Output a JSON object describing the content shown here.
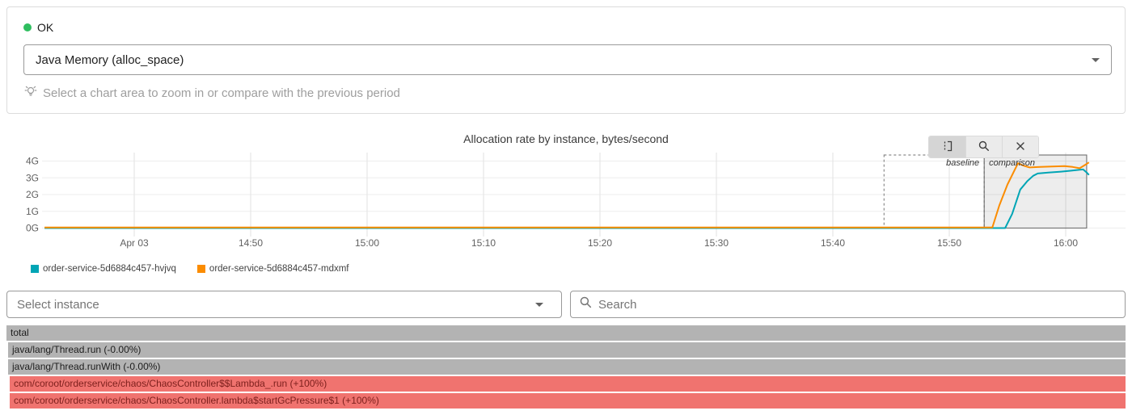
{
  "status": {
    "label": "OK",
    "color": "#2fbe5f"
  },
  "report_select": {
    "value": "Java Memory (alloc_space)"
  },
  "hint": {
    "text": "Select a chart area to zoom in or compare with the previous period"
  },
  "chart": {
    "title": "Allocation rate by instance, bytes/second",
    "toolbar": {
      "buttons": [
        {
          "icon": "select-compare-icon",
          "active": true
        },
        {
          "icon": "magnify-icon",
          "active": false
        },
        {
          "icon": "close-icon",
          "active": false
        }
      ],
      "baseline_label": "baseline",
      "comparison_label": "comparison"
    }
  },
  "chart_data": {
    "type": "line",
    "title": "Allocation rate by instance, bytes/second",
    "y_unit": "bytes/second (G = gigabytes)",
    "grid": true,
    "legend_position": "bottom-left",
    "ylim": [
      0,
      4.36
    ],
    "x_axis_note": "t = minutes since midnight, Apr 03",
    "x_range": [
      872.3,
      965.8
    ],
    "x_ticks": [
      {
        "label": "Apr 03",
        "t": 880
      },
      {
        "label": "14:50",
        "t": 890
      },
      {
        "label": "15:00",
        "t": 900
      },
      {
        "label": "15:10",
        "t": 910
      },
      {
        "label": "15:20",
        "t": 920
      },
      {
        "label": "15:30",
        "t": 930
      },
      {
        "label": "15:40",
        "t": 940
      },
      {
        "label": "15:50",
        "t": 950
      },
      {
        "label": "16:00",
        "t": 960
      }
    ],
    "y_ticks": [
      {
        "label": "0G",
        "value": 0
      },
      {
        "label": "1G",
        "value": 1
      },
      {
        "label": "2G",
        "value": 2
      },
      {
        "label": "3G",
        "value": 3
      },
      {
        "label": "4G",
        "value": 4
      }
    ],
    "regions": [
      {
        "name": "baseline",
        "t_start": 944.4,
        "t_end": 953,
        "style": "dashed"
      },
      {
        "name": "comparison",
        "t_start": 953,
        "t_end": 961.8,
        "style": "solid-filled"
      }
    ],
    "series": [
      {
        "name": "order-service-5d6884c457-hvjvq",
        "color": "#00a5b5",
        "points": [
          [
            872.3,
            0.0
          ],
          [
            954.8,
            0.0
          ],
          [
            955.4,
            0.85
          ],
          [
            956.1,
            2.3
          ],
          [
            956.7,
            2.8
          ],
          [
            957.2,
            3.12
          ],
          [
            957.6,
            3.26
          ],
          [
            958.5,
            3.31
          ],
          [
            959.6,
            3.37
          ],
          [
            960.4,
            3.42
          ],
          [
            961.2,
            3.48
          ],
          [
            961.5,
            3.5
          ],
          [
            961.8,
            3.32
          ],
          [
            962.0,
            3.17
          ]
        ]
      },
      {
        "name": "order-service-5d6884c457-mdxmf",
        "color": "#fb8c00",
        "points": [
          [
            872.3,
            0.04
          ],
          [
            953.7,
            0.04
          ],
          [
            954.3,
            1.35
          ],
          [
            955.0,
            2.6
          ],
          [
            955.9,
            3.87
          ],
          [
            956.4,
            3.72
          ],
          [
            956.9,
            3.62
          ],
          [
            957.8,
            3.65
          ],
          [
            958.8,
            3.67
          ],
          [
            959.9,
            3.7
          ],
          [
            960.6,
            3.65
          ],
          [
            961.2,
            3.57
          ],
          [
            961.6,
            3.74
          ],
          [
            962.0,
            3.92
          ]
        ]
      }
    ]
  },
  "controls": {
    "instance_select": {
      "placeholder": "Select instance"
    },
    "search": {
      "placeholder": "Search"
    }
  },
  "profile_table": {
    "colors": {
      "neutral_bg": "#b3b3b3",
      "neutral_text": "#1d1d1d",
      "bad_bg": "#f0736f",
      "bad_text": "#7c1f1c"
    },
    "rows": [
      {
        "label": "total",
        "type": "neutral",
        "depth": 0
      },
      {
        "label": "java/lang/Thread.run (-0.00%)",
        "type": "neutral",
        "depth": 1
      },
      {
        "label": "java/lang/Thread.runWith (-0.00%)",
        "type": "neutral",
        "depth": 1
      },
      {
        "label": "com/coroot/orderservice/chaos/ChaosController$$Lambda_.run (+100%)",
        "type": "bad",
        "depth": 2
      },
      {
        "label": "com/coroot/orderservice/chaos/ChaosController.lambda$startGcPressure$1 (+100%)",
        "type": "bad",
        "depth": 2
      }
    ]
  }
}
